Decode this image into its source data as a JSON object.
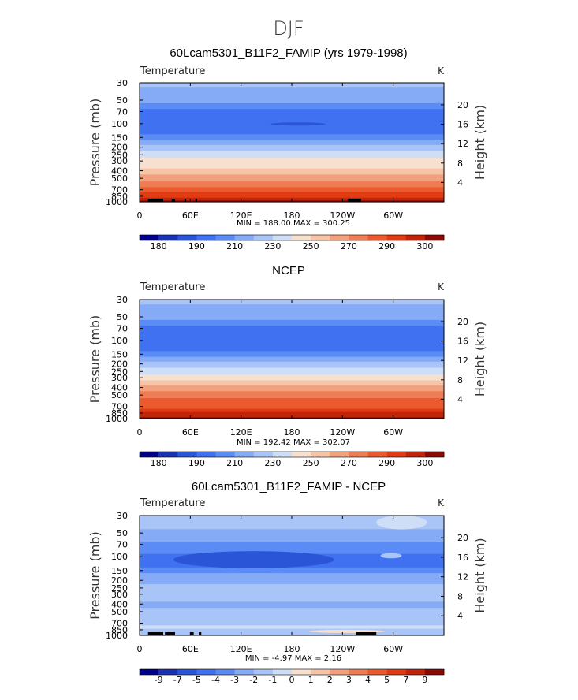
{
  "figure": {
    "title": "DJF",
    "palette": [
      "#00008b",
      "#1a33b3",
      "#2a55d6",
      "#3f71f0",
      "#5b8cf5",
      "#85aaf6",
      "#a9c5f7",
      "#cfdef7",
      "#f8e0cf",
      "#f6c5a8",
      "#f2a07d",
      "#ee7d55",
      "#ea5a2e",
      "#e03b12",
      "#c0240a",
      "#8b0a05"
    ],
    "colorbar_full": [
      "180",
      "190",
      "210",
      "230",
      "250",
      "270",
      "290",
      "300"
    ],
    "colorbar_diff": [
      "-9",
      "-7",
      "-5",
      "-4",
      "-3",
      "-2",
      "-1",
      "0",
      "1",
      "2",
      "3",
      "4",
      "5",
      "7",
      "9"
    ]
  },
  "chart_data": [
    {
      "type": "heatmap",
      "title": "60Lcam5301_B11F2_FAMIP (yrs 1979-1998)",
      "variable_label": "Temperature",
      "units_label": "K",
      "ylabel_left": "Pressure  (mb)",
      "ylabel_right": "Height  (km)",
      "xticks": [
        "0",
        "60E",
        "120E",
        "180",
        "120W",
        "60W"
      ],
      "xtick_values": [
        0,
        60,
        120,
        180,
        240,
        300
      ],
      "pressure_ticks": [
        "30",
        "50",
        "70",
        "100",
        "150",
        "200",
        "250",
        "300",
        "400",
        "500",
        "700",
        "850",
        "1000"
      ],
      "pressure_values": [
        30,
        50,
        70,
        100,
        150,
        200,
        250,
        300,
        400,
        500,
        700,
        850,
        1000
      ],
      "height_ticks": [
        "20",
        "16",
        "12",
        "8",
        "4"
      ],
      "height_values": [
        20,
        16,
        12,
        8,
        4
      ],
      "xlim": [
        0,
        360
      ],
      "ylim_mb": [
        1000,
        30
      ],
      "stats_text": "MIN = 188.00   MAX = 300.25",
      "min": 188.0,
      "max": 300.25,
      "profile_levels": [
        30,
        40,
        50,
        60,
        70,
        85,
        100,
        125,
        150,
        175,
        200,
        250,
        300,
        350,
        400,
        500,
        600,
        700,
        800,
        850,
        925,
        1000
      ],
      "profile_colors": [
        6,
        5,
        5,
        4,
        3,
        3,
        3,
        3,
        4,
        5,
        6,
        7,
        8,
        8,
        9,
        10,
        11,
        12,
        13,
        13,
        14,
        15
      ],
      "features": [
        {
          "kind": "cold_core",
          "lon": [
            155,
            220
          ],
          "p": [
            97,
            105
          ],
          "color": 2
        }
      ],
      "topography": [
        [
          10,
          28
        ],
        [
          38,
          42
        ],
        [
          53,
          55
        ],
        [
          66,
          68
        ],
        [
          246,
          262
        ]
      ]
    },
    {
      "type": "heatmap",
      "title": "NCEP",
      "variable_label": "Temperature",
      "units_label": "K",
      "ylabel_left": "Pressure  (mb)",
      "ylabel_right": "Height  (km)",
      "xticks": [
        "0",
        "60E",
        "120E",
        "180",
        "120W",
        "60W"
      ],
      "xtick_values": [
        0,
        60,
        120,
        180,
        240,
        300
      ],
      "pressure_ticks": [
        "30",
        "50",
        "70",
        "100",
        "150",
        "200",
        "250",
        "300",
        "400",
        "500",
        "700",
        "850",
        "1000"
      ],
      "pressure_values": [
        30,
        50,
        70,
        100,
        150,
        200,
        250,
        300,
        400,
        500,
        700,
        850,
        1000
      ],
      "height_ticks": [
        "20",
        "16",
        "12",
        "8",
        "4"
      ],
      "height_values": [
        20,
        16,
        12,
        8,
        4
      ],
      "xlim": [
        0,
        360
      ],
      "ylim_mb": [
        1000,
        30
      ],
      "stats_text": "MIN = 192.42   MAX = 302.07",
      "min": 192.42,
      "max": 302.07,
      "profile_levels": [
        30,
        40,
        50,
        60,
        70,
        85,
        100,
        125,
        150,
        175,
        200,
        250,
        300,
        350,
        400,
        500,
        600,
        700,
        800,
        850,
        925,
        1000
      ],
      "profile_colors": [
        6,
        5,
        5,
        4,
        3,
        3,
        3,
        3,
        4,
        5,
        6,
        7,
        8,
        9,
        10,
        11,
        12,
        12,
        13,
        14,
        14,
        15
      ],
      "features": [],
      "topography": []
    },
    {
      "type": "heatmap",
      "title": "60Lcam5301_B11F2_FAMIP - NCEP",
      "variable_label": "Temperature",
      "units_label": "K",
      "ylabel_left": "Pressure  (mb)",
      "ylabel_right": "Height  (km)",
      "xticks": [
        "0",
        "60E",
        "120E",
        "180",
        "120W",
        "60W"
      ],
      "xtick_values": [
        0,
        60,
        120,
        180,
        240,
        300
      ],
      "pressure_ticks": [
        "30",
        "50",
        "70",
        "100",
        "150",
        "200",
        "250",
        "300",
        "400",
        "500",
        "700",
        "850",
        "1000"
      ],
      "pressure_values": [
        30,
        50,
        70,
        100,
        150,
        200,
        250,
        300,
        400,
        500,
        700,
        850,
        1000
      ],
      "height_ticks": [
        "20",
        "16",
        "12",
        "8",
        "4"
      ],
      "height_values": [
        20,
        16,
        12,
        8,
        4
      ],
      "xlim": [
        0,
        360
      ],
      "ylim_mb": [
        1000,
        30
      ],
      "stats_text": "MIN =  -4.97   MAX =   2.16",
      "min": -4.97,
      "max": 2.16,
      "profile_levels": [
        30,
        40,
        50,
        60,
        70,
        85,
        100,
        125,
        150,
        175,
        200,
        250,
        300,
        350,
        400,
        500,
        600,
        700,
        800,
        850,
        925,
        1000
      ],
      "profile_colors": [
        6,
        6,
        5,
        5,
        4,
        4,
        3,
        3,
        4,
        5,
        5,
        6,
        6,
        6,
        5,
        6,
        6,
        6,
        7,
        6,
        6,
        6
      ],
      "features": [
        {
          "kind": "warm_patch",
          "lon": [
            280,
            340
          ],
          "p": [
            30,
            45
          ],
          "color": 7
        },
        {
          "kind": "cold_band",
          "lon": [
            40,
            230
          ],
          "p": [
            85,
            140
          ],
          "color": 2
        },
        {
          "kind": "light_patch",
          "lon": [
            285,
            310
          ],
          "p": [
            90,
            105
          ],
          "color": 6
        },
        {
          "kind": "warm_low",
          "lon": [
            200,
            290
          ],
          "p": [
            850,
            930
          ],
          "color": 8
        }
      ],
      "topography": [
        [
          10,
          28
        ],
        [
          30,
          42
        ],
        [
          60,
          64
        ],
        [
          70,
          73
        ],
        [
          256,
          280
        ]
      ]
    }
  ]
}
